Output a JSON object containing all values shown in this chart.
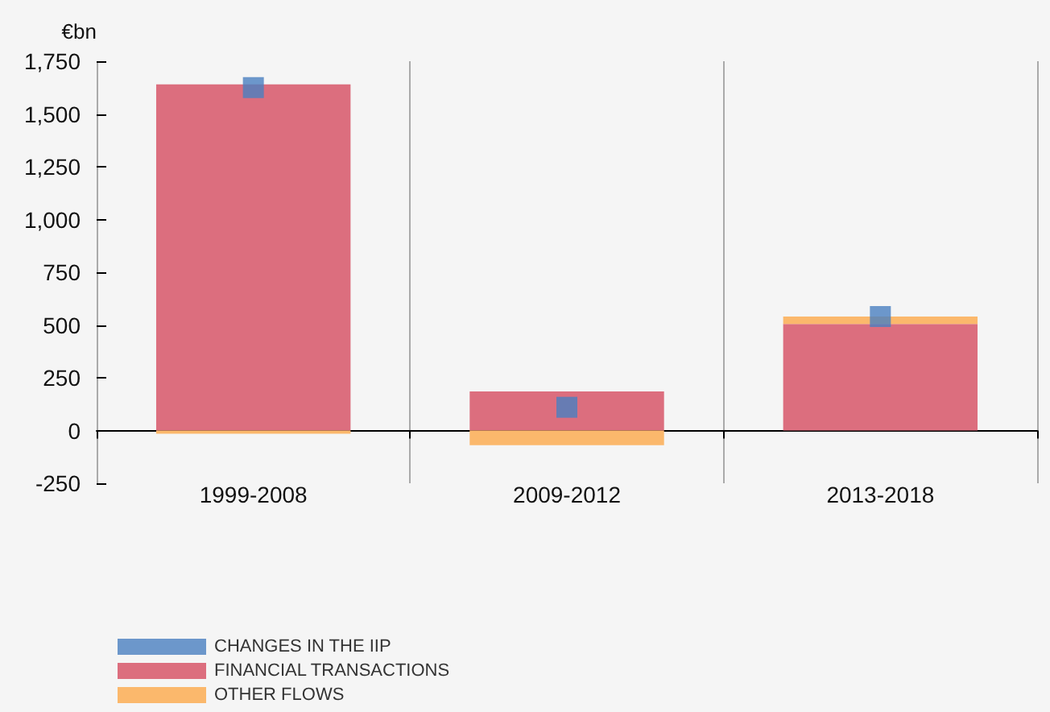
{
  "chart_data": {
    "type": "bar",
    "stacked": true,
    "ylabel": "€bn",
    "categories": [
      "1999-2008",
      "2009-2012",
      "2013-2018"
    ],
    "series": [
      {
        "name": "CHANGES IN THE IIP",
        "type": "scatter",
        "marker": "square",
        "color": "#4a7fc1",
        "x": [
          "1999-2008",
          "2009-2012",
          "2013-2018"
        ],
        "values": [
          1625,
          110,
          540
        ]
      },
      {
        "name": "FINANCIAL TRANSACTIONS",
        "color": "#dc6e7e",
        "values": [
          1640,
          185,
          505
        ]
      },
      {
        "name": "OTHER FLOWS",
        "color": "#fbb86c",
        "values": [
          -15,
          -70,
          35
        ]
      }
    ],
    "ylim": [
      -250,
      1750
    ],
    "yticks": [
      {
        "value": -250,
        "label": "-250"
      },
      {
        "value": 0,
        "label": "0"
      },
      {
        "value": 250,
        "label": "250"
      },
      {
        "value": 500,
        "label": "500"
      },
      {
        "value": 750,
        "label": "750"
      },
      {
        "value": 1000,
        "label": "1,000"
      },
      {
        "value": 1250,
        "label": "1,250"
      },
      {
        "value": 1500,
        "label": "1,500"
      },
      {
        "value": 1750,
        "label": "1,750"
      }
    ],
    "grid": "x",
    "legend": "bottom left"
  }
}
